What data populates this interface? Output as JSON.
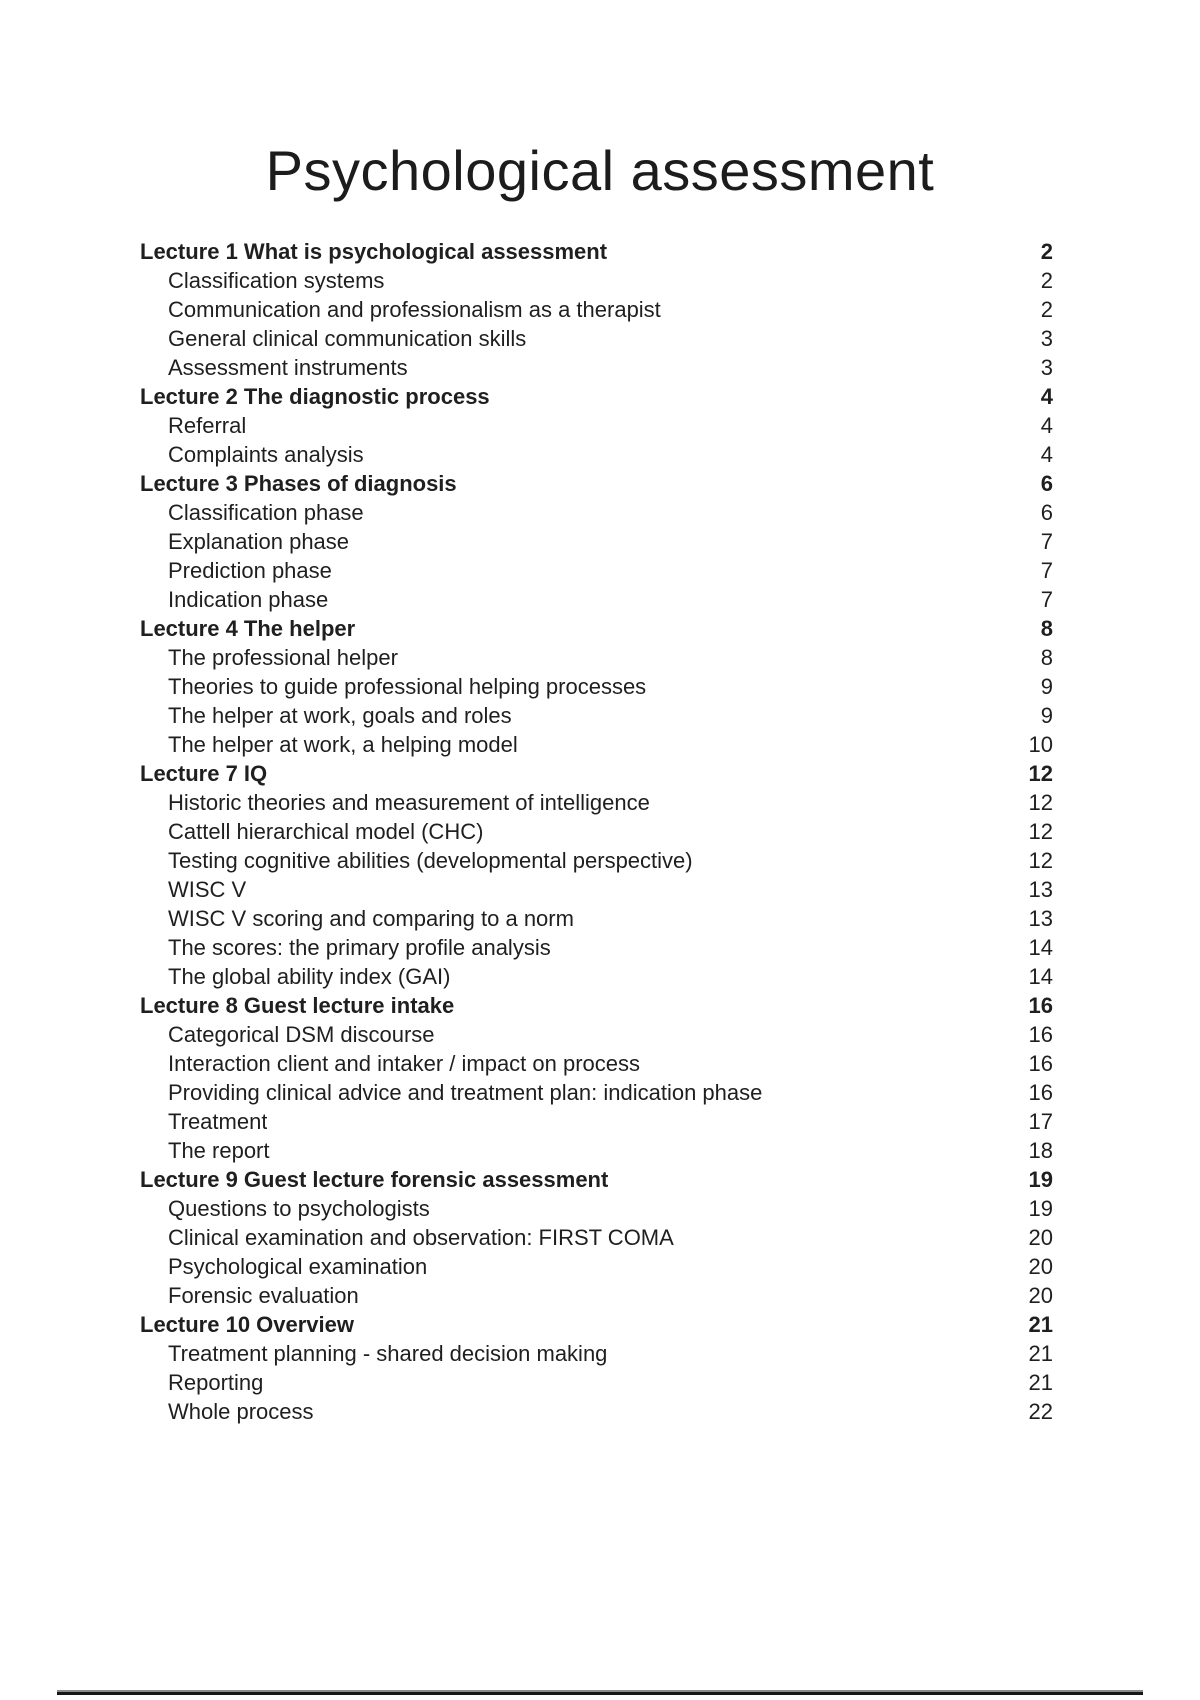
{
  "document": {
    "title": "Psychological assessment"
  },
  "toc": {
    "entries": [
      {
        "label": "Lecture 1 What is psychological assessment",
        "page": "2",
        "bold": true,
        "indent": false
      },
      {
        "label": "Classification systems",
        "page": "2",
        "bold": false,
        "indent": true
      },
      {
        "label": "Communication and professionalism as a therapist",
        "page": "2",
        "bold": false,
        "indent": true
      },
      {
        "label": "General clinical communication skills",
        "page": "3",
        "bold": false,
        "indent": true
      },
      {
        "label": "Assessment instruments",
        "page": "3",
        "bold": false,
        "indent": true
      },
      {
        "label": "Lecture 2 The diagnostic process",
        "page": "4",
        "bold": true,
        "indent": false
      },
      {
        "label": "Referral",
        "page": "4",
        "bold": false,
        "indent": true
      },
      {
        "label": "Complaints analysis",
        "page": "4",
        "bold": false,
        "indent": true
      },
      {
        "label": "Lecture 3 Phases of diagnosis",
        "page": "6",
        "bold": true,
        "indent": false
      },
      {
        "label": "Classification phase",
        "page": "6",
        "bold": false,
        "indent": true
      },
      {
        "label": "Explanation phase",
        "page": "7",
        "bold": false,
        "indent": true
      },
      {
        "label": "Prediction phase",
        "page": "7",
        "bold": false,
        "indent": true
      },
      {
        "label": "Indication phase",
        "page": "7",
        "bold": false,
        "indent": true
      },
      {
        "label": "Lecture 4 The helper",
        "page": "8",
        "bold": true,
        "indent": false
      },
      {
        "label": "The professional helper",
        "page": "8",
        "bold": false,
        "indent": true
      },
      {
        "label": "Theories to guide professional helping processes",
        "page": "9",
        "bold": false,
        "indent": true
      },
      {
        "label": "The helper at work, goals and roles",
        "page": "9",
        "bold": false,
        "indent": true
      },
      {
        "label": "The helper at work, a helping model",
        "page": "10",
        "bold": false,
        "indent": true
      },
      {
        "label": "Lecture 7 IQ",
        "page": "12",
        "bold": true,
        "indent": false
      },
      {
        "label": "Historic theories and measurement of intelligence",
        "page": "12",
        "bold": false,
        "indent": true
      },
      {
        "label": "Cattell hierarchical model (CHC)",
        "page": "12",
        "bold": false,
        "indent": true
      },
      {
        "label": "Testing cognitive abilities (developmental perspective)",
        "page": "12",
        "bold": false,
        "indent": true
      },
      {
        "label": "WISC V",
        "page": "13",
        "bold": false,
        "indent": true
      },
      {
        "label": "WISC V scoring and comparing to a norm",
        "page": "13",
        "bold": false,
        "indent": true
      },
      {
        "label": "The scores: the primary profile analysis",
        "page": "14",
        "bold": false,
        "indent": true
      },
      {
        "label": "The global ability index (GAI)",
        "page": "14",
        "bold": false,
        "indent": true
      },
      {
        "label": "Lecture 8 Guest lecture intake",
        "page": "16",
        "bold": true,
        "indent": false
      },
      {
        "label": "Categorical DSM discourse",
        "page": "16",
        "bold": false,
        "indent": true
      },
      {
        "label": "Interaction client and intaker / impact on process",
        "page": "16",
        "bold": false,
        "indent": true
      },
      {
        "label": "Providing clinical advice and treatment plan: indication phase",
        "page": "16",
        "bold": false,
        "indent": true
      },
      {
        "label": "Treatment",
        "page": "17",
        "bold": false,
        "indent": true
      },
      {
        "label": "The report",
        "page": "18",
        "bold": false,
        "indent": true
      },
      {
        "label": "Lecture 9 Guest lecture forensic assessment",
        "page": "19",
        "bold": true,
        "indent": false
      },
      {
        "label": "Questions to psychologists",
        "page": "19",
        "bold": false,
        "indent": true
      },
      {
        "label": "Clinical examination and observation: FIRST COMA",
        "page": "20",
        "bold": false,
        "indent": true
      },
      {
        "label": "Psychological examination",
        "page": "20",
        "bold": false,
        "indent": true
      },
      {
        "label": "Forensic evaluation",
        "page": "20",
        "bold": false,
        "indent": true
      },
      {
        "label": "Lecture 10 Overview",
        "page": "21",
        "bold": true,
        "indent": false
      },
      {
        "label": "Treatment planning - shared decision making",
        "page": "21",
        "bold": false,
        "indent": true
      },
      {
        "label": "Reporting",
        "page": "21",
        "bold": false,
        "indent": true
      },
      {
        "label": "Whole process",
        "page": "22",
        "bold": false,
        "indent": true
      }
    ]
  },
  "colors": {
    "background": "#ffffff",
    "text": "#1f1f1f",
    "divider": "#161616"
  }
}
